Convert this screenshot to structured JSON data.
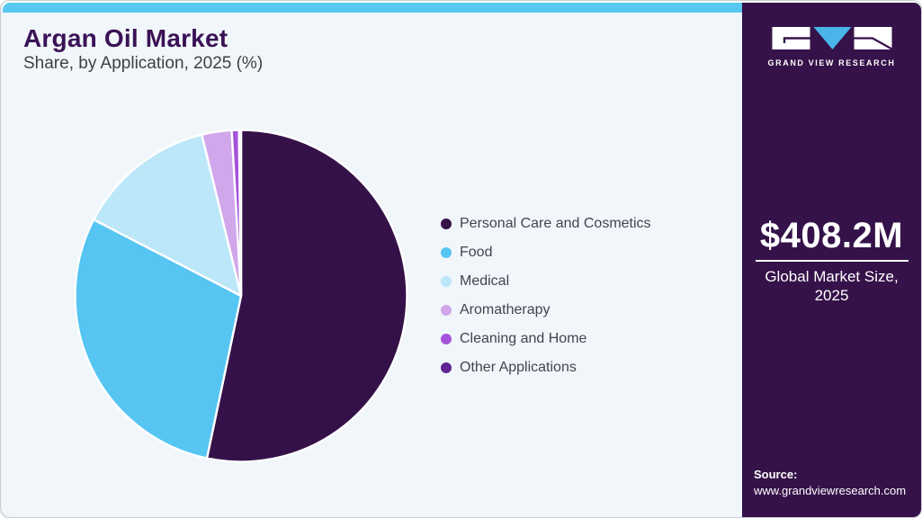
{
  "header": {
    "title": "Argan Oil Market",
    "subtitle": "Share, by Application, 2025 (%)"
  },
  "chart_data": {
    "type": "pie",
    "title": "Argan Oil Market Share, by Application, 2025 (%)",
    "unit": "percent",
    "direction": "clockwise",
    "start_angle_deg": 0,
    "legend_position": "right-middle",
    "series": [
      {
        "name": "Personal Care and Cosmetics",
        "value": 53.3,
        "color": "#351149"
      },
      {
        "name": "Food",
        "value": 29.3,
        "color": "#56c5f2"
      },
      {
        "name": "Medical",
        "value": 13.6,
        "color": "#bce7f9"
      },
      {
        "name": "Aromatherapy",
        "value": 2.9,
        "color": "#d0a7ea"
      },
      {
        "name": "Cleaning and Home",
        "value": 0.7,
        "color": "#a553da"
      },
      {
        "name": "Other Applications",
        "value": 0.2,
        "color": "#5f2596"
      }
    ]
  },
  "sidebar": {
    "brand": "GRAND VIEW RESEARCH",
    "market_size_value": "$408.2M",
    "market_size_label_line1": "Global Market Size,",
    "market_size_label_line2": "2025",
    "source_label": "Source:",
    "source_url": "www.grandviewresearch.com"
  },
  "colors": {
    "accent_cyan": "#58c8f0",
    "panel_purple": "#351249",
    "bg_light": "#f1f6fa",
    "title_purple": "#3a1256",
    "text_dark": "#45424f",
    "logo_triangle_blue": "#49b5e8",
    "slice_stroke": "#ffffff"
  }
}
